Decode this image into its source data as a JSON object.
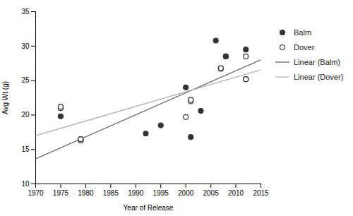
{
  "chart_data": {
    "type": "scatter",
    "xlabel": "Year of Release",
    "ylabel": "Avg Wt (g)",
    "xlim": [
      1970,
      2015
    ],
    "ylim": [
      10,
      35
    ],
    "xticks": [
      1970,
      1975,
      1980,
      1985,
      1990,
      1995,
      2000,
      2005,
      2010,
      2015
    ],
    "yticks": [
      10,
      15,
      20,
      25,
      30,
      35
    ],
    "grid": false,
    "legend": "right",
    "series": [
      {
        "name": "Balm",
        "type": "scatter",
        "marker": "circle",
        "color": "#333333",
        "x": [
          1975,
          1979,
          1979,
          1992,
          1995,
          2000,
          2001,
          2003,
          2006,
          2008,
          2008,
          2012,
          2012
        ],
        "values": [
          19.8,
          16.3,
          16.5,
          17.3,
          18.5,
          24.0,
          16.8,
          20.6,
          30.8,
          28.5,
          28.5,
          29.5,
          25.2
        ]
      },
      {
        "name": "Dover",
        "type": "scatter",
        "marker": "open_circle",
        "color": "#333333",
        "x": [
          1975,
          1975,
          1979,
          1979,
          2000,
          2001,
          2001,
          2007,
          2007,
          2012,
          2012
        ],
        "values": [
          21.0,
          21.2,
          16.3,
          16.5,
          19.7,
          22.0,
          22.2,
          26.7,
          26.8,
          28.5,
          25.2
        ]
      },
      {
        "name": "Linear (Balm)",
        "type": "line",
        "line_style": "solid",
        "color": "#555555",
        "x": [
          1970,
          2015
        ],
        "values": [
          13.634,
          28.016
        ]
      },
      {
        "name": "Linear (Dover)",
        "type": "line",
        "line_style": "solid",
        "color": "#aaaaaa",
        "x": [
          1970,
          2015
        ],
        "values": [
          17.009,
          26.56
        ]
      }
    ]
  }
}
